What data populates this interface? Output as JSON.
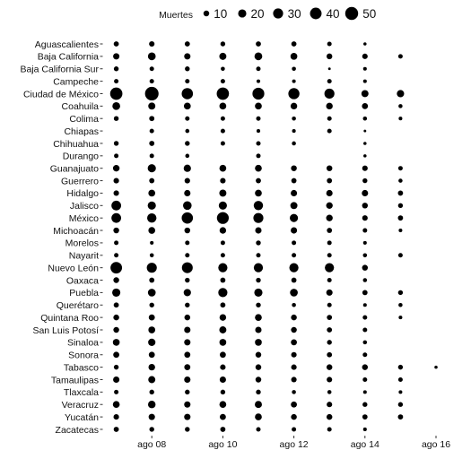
{
  "chart_data": {
    "type": "scatter",
    "encoding": "dot size = deaths per state per day",
    "legend": {
      "title": "Muertes",
      "position": "top",
      "values": [
        10,
        20,
        30,
        40,
        50
      ]
    },
    "x_dates": [
      "2020-08-07",
      "2020-08-08",
      "2020-08-09",
      "2020-08-10",
      "2020-08-11",
      "2020-08-12",
      "2020-08-13",
      "2020-08-14",
      "2020-08-15",
      "2020-08-16"
    ],
    "xlim": [
      "2020-08-06",
      "2020-08-16"
    ],
    "x_ticks": [
      {
        "date": "2020-08-08",
        "label": "ago 08"
      },
      {
        "date": "2020-08-10",
        "label": "ago 10"
      },
      {
        "date": "2020-08-12",
        "label": "ago 12"
      },
      {
        "date": "2020-08-14",
        "label": "ago 14"
      },
      {
        "date": "2020-08-16",
        "label": "ago 16"
      }
    ],
    "states": [
      "Aguascalientes",
      "Baja California",
      "Baja California Sur",
      "Campeche",
      "Ciudad de México",
      "Coahuila",
      "Colima",
      "Chiapas",
      "Chihuahua",
      "Durango",
      "Guanajuato",
      "Guerrero",
      "Hidalgo",
      "Jalisco",
      "México",
      "Michoacán",
      "Morelos",
      "Nayarit",
      "Nuevo León",
      "Oaxaca",
      "Puebla",
      "Querétaro",
      "Quintana Roo",
      "San Luis Potosí",
      "Sinaloa",
      "Sonora",
      "Tabasco",
      "Tamaulipas",
      "Tlaxcala",
      "Veracruz",
      "Yucatán",
      "Zacatecas"
    ],
    "values": [
      [
        8,
        9,
        8,
        7,
        8,
        8,
        6,
        3,
        null,
        null
      ],
      [
        12,
        18,
        12,
        15,
        18,
        14,
        10,
        9,
        6,
        null
      ],
      [
        7,
        6,
        7,
        5,
        6,
        5,
        2,
        4,
        null,
        null
      ],
      [
        6,
        6,
        6,
        6,
        4,
        4,
        6,
        4,
        null,
        null
      ],
      [
        45,
        55,
        38,
        45,
        42,
        37,
        30,
        15,
        16,
        null
      ],
      [
        18,
        15,
        14,
        14,
        14,
        13,
        13,
        11,
        5,
        null
      ],
      [
        7,
        8,
        6,
        6,
        6,
        5,
        6,
        5,
        4,
        null
      ],
      [
        null,
        6,
        5,
        6,
        4,
        4,
        6,
        2,
        null,
        null
      ],
      [
        7,
        8,
        7,
        6,
        6,
        5,
        null,
        3,
        null,
        null
      ],
      [
        6,
        6,
        5,
        null,
        6,
        null,
        null,
        3,
        null,
        null
      ],
      [
        13,
        20,
        16,
        14,
        14,
        10,
        10,
        9,
        6,
        null
      ],
      [
        9,
        8,
        9,
        9,
        8,
        8,
        8,
        7,
        5,
        null
      ],
      [
        9,
        14,
        12,
        15,
        14,
        12,
        12,
        12,
        8,
        null
      ],
      [
        28,
        20,
        22,
        20,
        26,
        15,
        13,
        10,
        7,
        null
      ],
      [
        28,
        26,
        38,
        42,
        30,
        20,
        13,
        9,
        8,
        null
      ],
      [
        10,
        14,
        10,
        13,
        12,
        12,
        8,
        6,
        4,
        null
      ],
      [
        6,
        4,
        6,
        6,
        7,
        6,
        6,
        4,
        null,
        null
      ],
      [
        6,
        5,
        6,
        6,
        6,
        6,
        6,
        5,
        6,
        null
      ],
      [
        40,
        30,
        35,
        25,
        25,
        25,
        25,
        10,
        null,
        null
      ],
      [
        10,
        8,
        7,
        8,
        7,
        8,
        6,
        5,
        null,
        null
      ],
      [
        20,
        18,
        16,
        25,
        20,
        18,
        12,
        8,
        7,
        null
      ],
      [
        8,
        7,
        7,
        8,
        7,
        5,
        6,
        4,
        5,
        null
      ],
      [
        10,
        11,
        10,
        13,
        14,
        10,
        8,
        6,
        4,
        null
      ],
      [
        10,
        14,
        12,
        15,
        12,
        10,
        8,
        6,
        null,
        null
      ],
      [
        14,
        16,
        12,
        14,
        14,
        11,
        7,
        5,
        null,
        null
      ],
      [
        11,
        11,
        11,
        11,
        10,
        9,
        8,
        6,
        null,
        null
      ],
      [
        7,
        13,
        11,
        9,
        10,
        9,
        10,
        10,
        7,
        3
      ],
      [
        12,
        15,
        12,
        12,
        10,
        9,
        9,
        6,
        6,
        null
      ],
      [
        6,
        7,
        7,
        7,
        7,
        5,
        5,
        4,
        4,
        null
      ],
      [
        14,
        17,
        12,
        14,
        15,
        11,
        9,
        7,
        7,
        null
      ],
      [
        9,
        12,
        12,
        11,
        14,
        10,
        10,
        8,
        8,
        null
      ],
      [
        8,
        7,
        7,
        8,
        6,
        6,
        6,
        4,
        null,
        null
      ]
    ]
  }
}
